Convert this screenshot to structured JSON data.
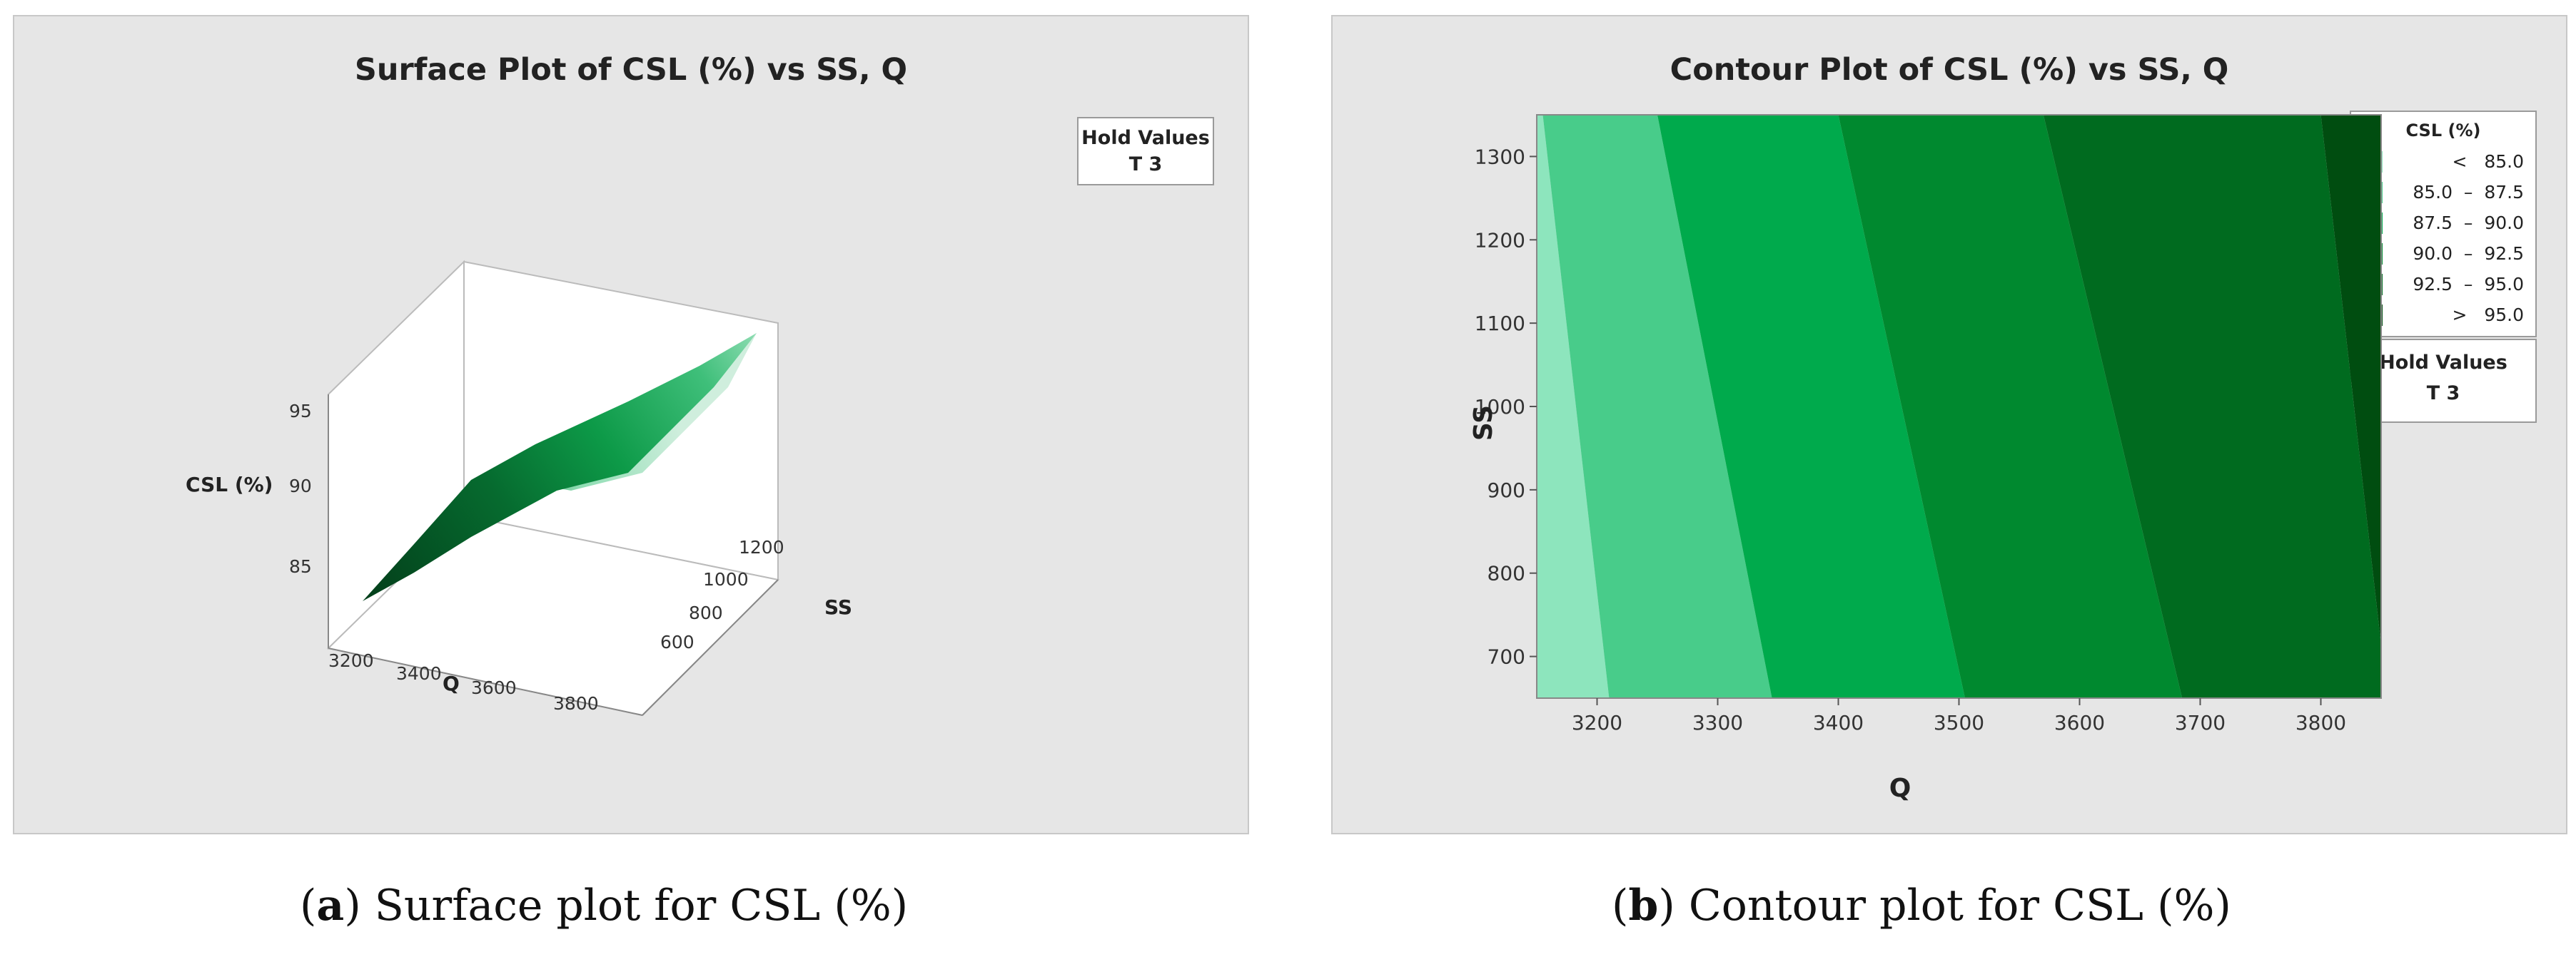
{
  "captions": {
    "a_letter": "a",
    "a_text": " Surface plot for CSL (%)",
    "b_letter": "b",
    "b_text": " Contour plot for CSL (%)"
  },
  "hold_values": {
    "title": "Hold Values",
    "value": "T  3"
  },
  "chart_data": [
    {
      "type": "surface",
      "title": "Surface Plot of CSL (%) vs SS, Q",
      "xlabel": "Q",
      "ylabel": "SS",
      "zlabel": "CSL (%)",
      "x_ticks": [
        "3200",
        "3400",
        "3600",
        "3800"
      ],
      "y_ticks": [
        "600",
        "800",
        "1000",
        "1200"
      ],
      "z_ticks": [
        "85",
        "90",
        "95"
      ],
      "xlim": [
        3150,
        3850
      ],
      "ylim": [
        650,
        1350
      ],
      "zlim": [
        83,
        97
      ],
      "surface_corners": [
        {
          "Q": 3150,
          "SS": 650,
          "CSL": 84.5
        },
        {
          "Q": 3850,
          "SS": 650,
          "CSL": 96.0
        },
        {
          "Q": 3150,
          "SS": 1350,
          "CSL": 85.5
        },
        {
          "Q": 3850,
          "SS": 1350,
          "CSL": 97.0
        }
      ],
      "colors": [
        "#cfeedd",
        "#8fddb3",
        "#3fbf7a",
        "#0d9a48",
        "#066b2f",
        "#03401b"
      ]
    },
    {
      "type": "contour",
      "title": "Contour Plot of CSL (%) vs SS, Q",
      "xlabel": "Q",
      "ylabel": "SS",
      "x_ticks": [
        3200,
        3300,
        3400,
        3500,
        3600,
        3700,
        3800
      ],
      "y_ticks": [
        700,
        800,
        900,
        1000,
        1100,
        1200,
        1300
      ],
      "xlim": [
        3150,
        3850
      ],
      "ylim": [
        650,
        1350
      ],
      "legend_title": "CSL (%)",
      "levels": [
        {
          "label": "<   85.0",
          "color": "#8de5bd"
        },
        {
          "label": "85.0  –  87.5",
          "color": "#48cc8a"
        },
        {
          "label": "87.5  –  90.0",
          "color": "#00aa4c"
        },
        {
          "label": "90.0  –  92.5",
          "color": "#00892f"
        },
        {
          "label": "92.5  –  95.0",
          "color": "#006b1f"
        },
        {
          "label": ">   95.0",
          "color": "#004d10"
        }
      ],
      "boundaries": [
        {
          "Q_at_bottom": 3210,
          "Q_at_top": 3155
        },
        {
          "Q_at_bottom": 3345,
          "Q_at_top": 3250
        },
        {
          "Q_at_bottom": 3505,
          "Q_at_top": 3400
        },
        {
          "Q_at_bottom": 3685,
          "Q_at_top": 3570
        },
        {
          "Q_at_bottom": 3855,
          "Q_at_top": 3800
        }
      ]
    }
  ]
}
